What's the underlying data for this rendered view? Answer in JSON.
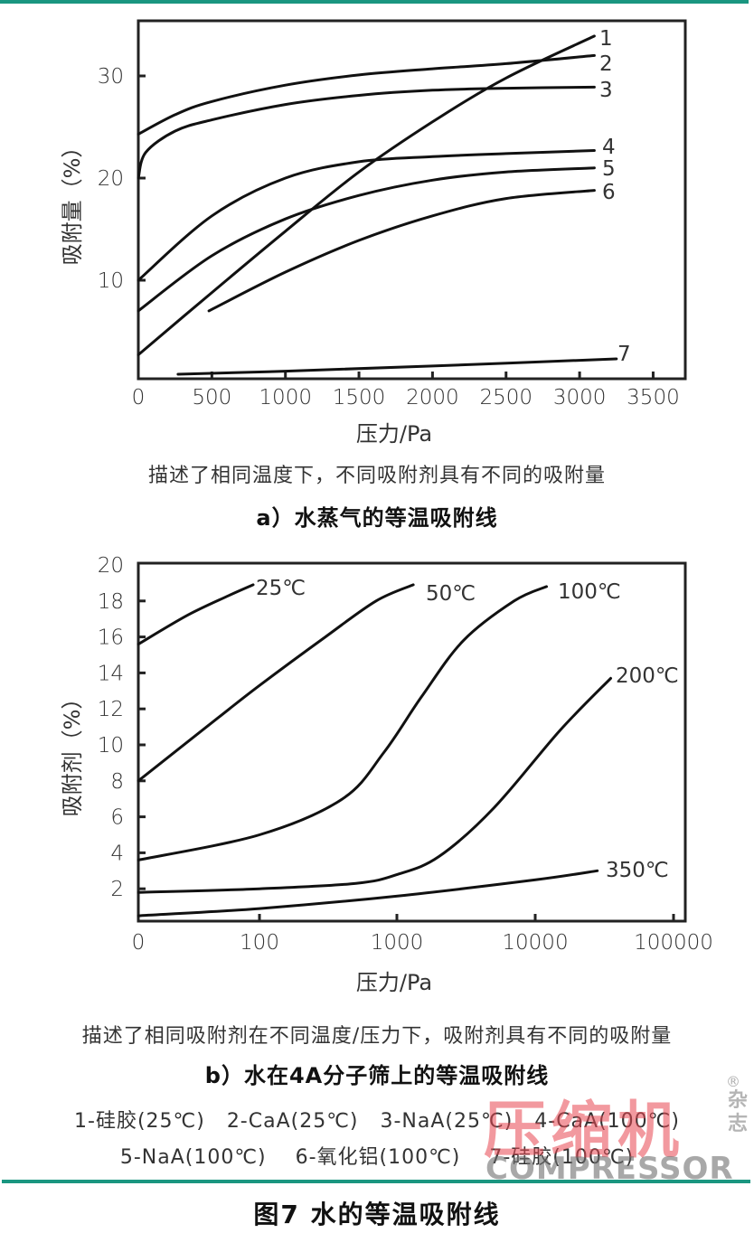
{
  "figure": {
    "title": "图7 水的等温吸附线",
    "accent_color": "#1a9680"
  },
  "panel_a": {
    "ylabel": "吸附量（%）",
    "xlabel": "压力/Pa",
    "description": "描述了相同温度下，不同吸附剂具有不同的吸附量",
    "subtitle": "a）水蒸气的等温吸附线",
    "x_ticks": [
      "0",
      "500",
      "1000",
      "1500",
      "2000",
      "2500",
      "3000",
      "3500"
    ],
    "y_ticks": [
      "10",
      "20",
      "30"
    ],
    "series_labels": [
      "1",
      "2",
      "3",
      "4",
      "5",
      "6",
      "7"
    ]
  },
  "panel_b": {
    "ylabel": "吸附剂（%）",
    "xlabel": "压力/Pa",
    "description": "描述了相同吸附剂在不同温度/压力下，吸附剂具有不同的吸附量",
    "subtitle": "b）水在4A分子筛上的等温吸附线",
    "x_ticks": [
      "0",
      "100",
      "1000",
      "10000",
      "100000"
    ],
    "y_ticks": [
      "2",
      "4",
      "6",
      "8",
      "10",
      "12",
      "14",
      "16",
      "18",
      "20"
    ],
    "series_labels": [
      "25℃",
      "50℃",
      "100℃",
      "200℃",
      "350℃"
    ]
  },
  "legend": {
    "line1": "1-硅胶(25℃)   2-CaA(25℃)   3-NaA(25℃)   4-CaA(100℃)",
    "line2": "5-NaA(100℃)    6-氧化铝(100℃)    7-硅胶(100℃)"
  },
  "watermark": {
    "cn": "压缩机",
    "en": "COMPRESSOR",
    "side": "杂志",
    "reg": "®"
  },
  "chart_data": [
    {
      "type": "line",
      "title": "a）水蒸气的等温吸附线",
      "xlabel": "压力/Pa",
      "ylabel": "吸附量（%）",
      "xlim": [
        0,
        3700
      ],
      "ylim": [
        0,
        35
      ],
      "x_ticks": [
        0,
        500,
        1000,
        1500,
        2000,
        2500,
        3000,
        3500
      ],
      "y_ticks": [
        10,
        20,
        30
      ],
      "grid": false,
      "legend_position": "below (numbered series labels at line ends)",
      "series": [
        {
          "name": "1-硅胶(25℃)",
          "x": [
            0,
            500,
            1000,
            1500,
            2000,
            2500,
            3100
          ],
          "y": [
            2.7,
            8.8,
            14.8,
            20.6,
            25.5,
            29.8,
            33.9
          ]
        },
        {
          "name": "2-CaA(25℃)",
          "x": [
            0,
            250,
            500,
            1000,
            1500,
            2000,
            2500,
            3100
          ],
          "y": [
            24.3,
            26.2,
            27.5,
            29.1,
            30.1,
            30.7,
            31.2,
            32.0
          ]
        },
        {
          "name": "3-NaA(25℃)",
          "x": [
            0,
            50,
            250,
            500,
            1000,
            1500,
            2000,
            2500,
            3100
          ],
          "y": [
            20.0,
            22.5,
            24.6,
            25.7,
            27.2,
            28.1,
            28.6,
            28.8,
            28.9
          ]
        },
        {
          "name": "4-CaA(100℃)",
          "x": [
            0,
            500,
            1000,
            1500,
            2000,
            2500,
            3100
          ],
          "y": [
            10.0,
            16.3,
            20.0,
            21.6,
            22.1,
            22.4,
            22.7
          ]
        },
        {
          "name": "5-NaA(100℃)",
          "x": [
            0,
            500,
            1000,
            1500,
            2000,
            2500,
            3100
          ],
          "y": [
            7.0,
            12.4,
            16.0,
            18.3,
            19.8,
            20.6,
            21.0
          ]
        },
        {
          "name": "6-氧化铝(100℃)",
          "x": [
            480,
            1000,
            1500,
            2000,
            2500,
            3100
          ],
          "y": [
            7.0,
            10.8,
            13.9,
            16.3,
            18.0,
            18.8
          ]
        },
        {
          "name": "7-硅胶(100℃)",
          "x": [
            270,
            1000,
            2000,
            3250
          ],
          "y": [
            0.8,
            1.1,
            1.6,
            2.3
          ]
        }
      ]
    },
    {
      "type": "line",
      "title": "b）水在4A分子筛上的等温吸附线",
      "xlabel": "压力/Pa",
      "ylabel": "吸附剂（%）",
      "x_scale": "log (axis starts at 0 label)",
      "x_ticks": [
        "0",
        "100",
        "1000",
        "10000",
        "100000"
      ],
      "ylim": [
        0,
        20
      ],
      "y_ticks": [
        2,
        4,
        6,
        8,
        10,
        12,
        14,
        16,
        18,
        20
      ],
      "grid": false,
      "series": [
        {
          "name": "25℃",
          "x": [
            10,
            30,
            60,
            90
          ],
          "y": [
            15.6,
            17.2,
            18.3,
            18.9
          ]
        },
        {
          "name": "50℃",
          "x": [
            10,
            50,
            100,
            300,
            700,
            1300
          ],
          "y": [
            8.0,
            11.5,
            13.3,
            16.0,
            18.0,
            18.9
          ]
        },
        {
          "name": "100℃",
          "x": [
            10,
            100,
            400,
            800,
            1500,
            3000,
            7000,
            12000
          ],
          "y": [
            3.6,
            5.0,
            7.0,
            9.6,
            12.7,
            15.8,
            18.0,
            18.8
          ]
        },
        {
          "name": "200℃",
          "x": [
            10,
            100,
            500,
            1000,
            2000,
            5000,
            15000,
            35000
          ],
          "y": [
            1.8,
            2.0,
            2.3,
            2.8,
            3.8,
            6.5,
            10.8,
            13.7
          ]
        },
        {
          "name": "350℃",
          "x": [
            10,
            100,
            1000,
            10000,
            28000
          ],
          "y": [
            0.5,
            0.9,
            1.6,
            2.5,
            3.0
          ]
        }
      ]
    }
  ]
}
